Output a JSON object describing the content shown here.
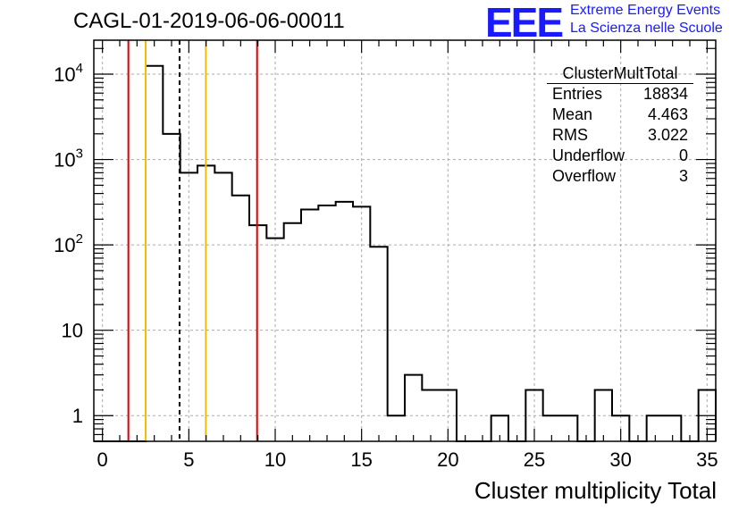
{
  "title": "CAGL-01-2019-06-06-00011",
  "logo": {
    "mark": "EEE",
    "line1": "Extreme Energy Events",
    "line2": "La Scienza nelle Scuole",
    "color": "#1a1aff"
  },
  "stats_box": {
    "name": "ClusterMultTotal",
    "rows": [
      {
        "label": "Entries",
        "value": "18834"
      },
      {
        "label": "Mean",
        "value": "4.463"
      },
      {
        "label": "RMS",
        "value": "3.022"
      },
      {
        "label": "Underflow",
        "value": "0"
      },
      {
        "label": "Overflow",
        "value": "3"
      }
    ]
  },
  "chart_data": {
    "type": "bar",
    "histogram": true,
    "xlabel": "Cluster multiplicity Total",
    "ylabel": "",
    "xlim": [
      -0.5,
      35.5
    ],
    "ylim": [
      0.5,
      25000
    ],
    "y_scale": "log",
    "grid": true,
    "x_ticks": [
      "0",
      "5",
      "10",
      "15",
      "20",
      "25",
      "30",
      "35"
    ],
    "y_ticks": [
      "1",
      "10",
      "10^2",
      "10^3",
      "10^4"
    ],
    "bin_width": 1,
    "bin_centers": [
      0,
      1,
      2,
      3,
      4,
      5,
      6,
      7,
      8,
      9,
      10,
      11,
      12,
      13,
      14,
      15,
      16,
      17,
      18,
      19,
      20,
      21,
      22,
      23,
      24,
      25,
      26,
      27,
      28,
      29,
      30,
      31,
      32,
      33,
      34,
      35
    ],
    "values": [
      0,
      0,
      0,
      12500,
      2000,
      700,
      850,
      700,
      380,
      170,
      120,
      180,
      260,
      290,
      320,
      280,
      95,
      1,
      3,
      2,
      2,
      0,
      0,
      1,
      0,
      2,
      1,
      1,
      0,
      2,
      1,
      0,
      1,
      1,
      0,
      2
    ],
    "vertical_lines": [
      {
        "x": 1.5,
        "color": "#e00000",
        "style": "solid"
      },
      {
        "x": 2.5,
        "color": "#f0c000",
        "style": "solid"
      },
      {
        "x": 4.463,
        "color": "#000000",
        "style": "dashed"
      },
      {
        "x": 5.985,
        "color": "#f0c000",
        "style": "solid"
      },
      {
        "x": 8.95,
        "color": "#e00000",
        "style": "solid"
      }
    ]
  }
}
